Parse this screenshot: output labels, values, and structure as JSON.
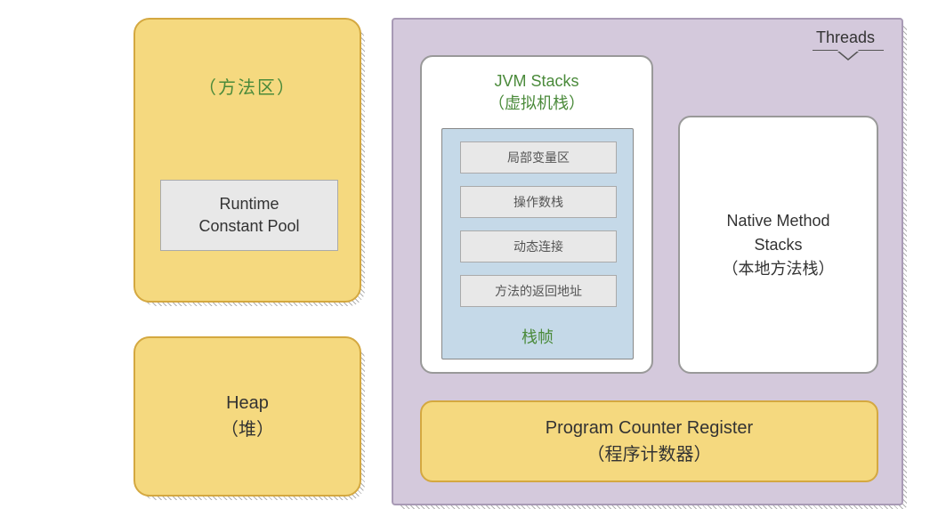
{
  "method_area": {
    "title": "（方法区）",
    "runtime_pool": "Runtime\nConstant Pool"
  },
  "heap": {
    "label": "Heap\n（堆）"
  },
  "threads": {
    "label": "Threads",
    "jvm_stacks": {
      "title": "JVM Stacks\n（虚拟机栈）",
      "frame_label": "栈帧",
      "items": [
        "局部变量区",
        "操作数栈",
        "动态连接",
        "方法的返回地址"
      ]
    },
    "native_stacks": "Native Method\nStacks\n（本地方法栈）",
    "pc_register": "Program Counter Register\n（程序计数器）"
  },
  "colors": {
    "yellow_bg": "#f5d97f",
    "yellow_border": "#d4a840",
    "purple_bg": "#d4c9dc",
    "purple_border": "#a89ab5",
    "blue_bg": "#c5d9e8",
    "gray_bg": "#e8e8e8",
    "green_text": "#4a8a3a"
  }
}
